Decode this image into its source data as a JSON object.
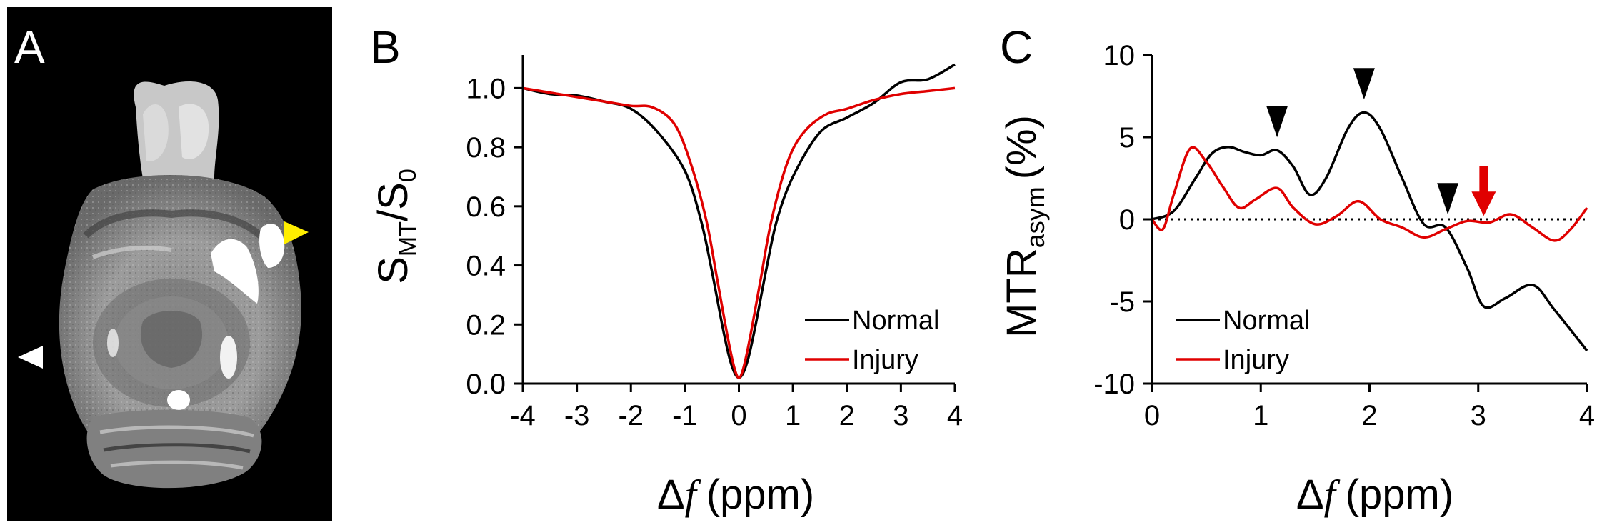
{
  "panels": {
    "a": {
      "label": "A",
      "description_colors": {
        "background": "#000000"
      }
    },
    "b": {
      "label": "B"
    },
    "c": {
      "label": "C"
    }
  },
  "colors": {
    "normal": "#000000",
    "injury": "#e00000",
    "marker_yellow": "#ffee00",
    "marker_white": "#ffffff"
  },
  "chart_data": [
    {
      "type": "line",
      "panel": "B",
      "title": "",
      "xlabel_symbol": "Δ",
      "xlabel_var": "f",
      "xlabel_unit": "(ppm)",
      "ylabel_main": "S",
      "ylabel_sub1": "MT",
      "ylabel_slash": "/S",
      "ylabel_sub2": "0",
      "xlim": [
        -4,
        4
      ],
      "ylim": [
        0,
        1.1
      ],
      "xticks": [
        -4,
        -3,
        -2,
        -1,
        0,
        1,
        2,
        3,
        4
      ],
      "xtick_labels": [
        "-4",
        "-3",
        "-2",
        "-1",
        "0",
        "1",
        "2",
        "3",
        "4"
      ],
      "yticks": [
        0,
        0.2,
        0.4,
        0.6,
        0.8,
        1.0
      ],
      "ytick_labels": [
        "0.0",
        "0.2",
        "0.4",
        "0.6",
        "0.8",
        "1.0"
      ],
      "legend_position": "bottom-right",
      "series": [
        {
          "name": "Normal",
          "x": [
            -4,
            -3.5,
            -3,
            -2.5,
            -2,
            -1.5,
            -1,
            -0.7,
            -0.5,
            -0.3,
            -0.15,
            0,
            0.15,
            0.3,
            0.5,
            0.7,
            1,
            1.5,
            2,
            2.5,
            3,
            3.5,
            4
          ],
          "y": [
            1.0,
            0.98,
            0.975,
            0.955,
            0.93,
            0.85,
            0.72,
            0.55,
            0.38,
            0.19,
            0.07,
            0.02,
            0.07,
            0.19,
            0.38,
            0.55,
            0.7,
            0.85,
            0.9,
            0.95,
            1.02,
            1.03,
            1.08
          ]
        },
        {
          "name": "Injury",
          "x": [
            -4,
            -3.5,
            -3,
            -2.5,
            -2,
            -1.6,
            -1.2,
            -0.9,
            -0.6,
            -0.4,
            -0.2,
            -0.08,
            0,
            0.08,
            0.2,
            0.4,
            0.6,
            0.9,
            1.2,
            1.6,
            2,
            2.5,
            3,
            3.5,
            4
          ],
          "y": [
            1.0,
            0.985,
            0.97,
            0.955,
            0.94,
            0.935,
            0.88,
            0.75,
            0.55,
            0.35,
            0.15,
            0.05,
            0.02,
            0.05,
            0.15,
            0.35,
            0.55,
            0.75,
            0.85,
            0.91,
            0.93,
            0.96,
            0.98,
            0.99,
            1.0
          ]
        }
      ]
    },
    {
      "type": "line",
      "panel": "C",
      "title": "",
      "xlabel_symbol": "Δ",
      "xlabel_var": "f",
      "xlabel_unit": "(ppm)",
      "ylabel_main": "MTR",
      "ylabel_sub": "asym",
      "ylabel_unit": "(%)",
      "xlim": [
        0,
        4
      ],
      "ylim": [
        -10,
        10
      ],
      "xticks": [
        0,
        1,
        2,
        3,
        4
      ],
      "xtick_labels": [
        "0",
        "1",
        "2",
        "3",
        "4"
      ],
      "yticks": [
        -10,
        -5,
        0,
        5,
        10
      ],
      "ytick_labels": [
        "-10",
        "-5",
        "0",
        "5",
        "10"
      ],
      "reference_line": {
        "y": 0,
        "style": "dotted"
      },
      "legend_position": "bottom-left",
      "series": [
        {
          "name": "Normal",
          "x": [
            0,
            0.2,
            0.4,
            0.55,
            0.7,
            0.85,
            1.0,
            1.15,
            1.3,
            1.45,
            1.6,
            1.8,
            1.95,
            2.1,
            2.3,
            2.5,
            2.7,
            2.9,
            3.05,
            3.25,
            3.5,
            3.7,
            4.0
          ],
          "y": [
            0,
            0.5,
            2.5,
            4.0,
            4.4,
            4.1,
            3.9,
            4.2,
            3.2,
            1.5,
            2.5,
            5.5,
            6.5,
            5.5,
            2.5,
            -0.3,
            -0.5,
            -3.0,
            -5.3,
            -4.8,
            -4.0,
            -5.5,
            -8.0
          ]
        },
        {
          "name": "Injury",
          "x": [
            0,
            0.1,
            0.2,
            0.35,
            0.5,
            0.65,
            0.8,
            0.95,
            1.15,
            1.3,
            1.5,
            1.7,
            1.9,
            2.1,
            2.3,
            2.5,
            2.7,
            2.9,
            3.1,
            3.3,
            3.5,
            3.7,
            3.85,
            4.0
          ],
          "y": [
            0,
            -0.6,
            1.5,
            4.3,
            3.5,
            2.0,
            0.7,
            1.2,
            1.9,
            0.7,
            -0.3,
            0.2,
            1.1,
            0.0,
            -0.5,
            -1.1,
            -0.6,
            -0.1,
            -0.2,
            0.3,
            -0.5,
            -1.3,
            -0.6,
            0.7
          ]
        }
      ],
      "annotations": [
        {
          "type": "black-arrowhead",
          "x": 1.15,
          "y": 5.6
        },
        {
          "type": "black-arrowhead",
          "x": 1.95,
          "y": 7.9
        },
        {
          "type": "black-arrowhead",
          "x": 2.72,
          "y": 0.9
        },
        {
          "type": "red-arrow",
          "x": 3.05,
          "y": 0.9
        }
      ]
    }
  ]
}
